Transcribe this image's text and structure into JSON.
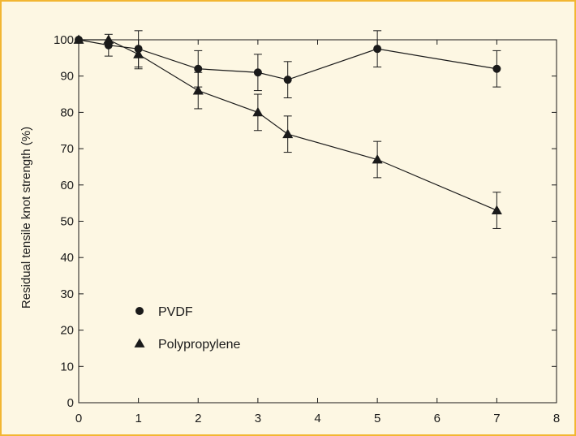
{
  "colors": {
    "frame": "#f2b632",
    "background": "#fdf7e3",
    "ink": "#1a1a1a"
  },
  "chart_data": {
    "type": "scatter",
    "title": "",
    "xlabel": "",
    "ylabel": "Residual tensile knot strength (%)",
    "xlim": [
      0,
      8
    ],
    "ylim": [
      0,
      100
    ],
    "xticks": [
      0,
      1,
      2,
      3,
      4,
      5,
      6,
      7,
      8
    ],
    "yticks": [
      0,
      10,
      20,
      30,
      40,
      50,
      60,
      70,
      80,
      90,
      100
    ],
    "grid": false,
    "legend_position": "lower-left",
    "series": [
      {
        "name": "PVDF",
        "marker": "circle",
        "x": [
          0,
          0.5,
          1,
          2,
          3,
          3.5,
          5,
          7
        ],
        "y": [
          100,
          98.5,
          97.5,
          92,
          91,
          89,
          97.5,
          92
        ],
        "err": [
          0,
          3,
          5,
          5,
          5,
          5,
          5,
          5
        ]
      },
      {
        "name": "Polypropylene",
        "marker": "triangle",
        "x": [
          0,
          0.5,
          1,
          2,
          3,
          3.5,
          5,
          7
        ],
        "y": [
          100,
          100,
          96,
          86,
          80,
          74,
          67,
          53
        ],
        "err": [
          0,
          0,
          4,
          5,
          5,
          5,
          5,
          5
        ]
      }
    ]
  }
}
